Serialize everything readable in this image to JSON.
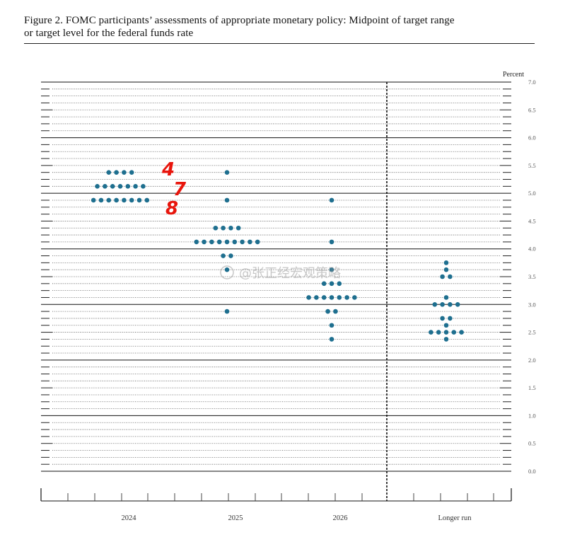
{
  "figure": {
    "title_line1": "Figure 2.  FOMC participants’ assessments of appropriate monetary policy:  Midpoint of target range",
    "title_line2": "or target level for the federal funds rate"
  },
  "watermark": "@张正经宏观策略",
  "annotations": [
    "4",
    "7",
    "8"
  ],
  "colors": {
    "dot": "#1e6f8f",
    "annotation": "#e8150c"
  },
  "chart_data": {
    "type": "scatter",
    "ylabel": "Percent",
    "ylim": [
      0,
      7.0
    ],
    "y_ticks": [
      "0.0",
      "0.5",
      "1.0",
      "1.5",
      "2.0",
      "2.5",
      "3.0",
      "3.5",
      "4.0",
      "4.5",
      "5.0",
      "5.5",
      "6.0",
      "6.5",
      "7.0"
    ],
    "categories": [
      "2024",
      "2025",
      "2026",
      "Longer run"
    ],
    "grid": "dotted lines every 0.125, solid lines at whole numbers",
    "dots": [
      {
        "category": "2024",
        "rows": [
          {
            "y": 5.375,
            "count": 4
          },
          {
            "y": 5.125,
            "count": 7
          },
          {
            "y": 4.875,
            "count": 8
          }
        ]
      },
      {
        "category": "2025",
        "rows": [
          {
            "y": 5.375,
            "count": 1
          },
          {
            "y": 4.875,
            "count": 1
          },
          {
            "y": 4.375,
            "count": 4
          },
          {
            "y": 4.125,
            "count": 9
          },
          {
            "y": 3.875,
            "count": 2
          },
          {
            "y": 3.625,
            "count": 1
          },
          {
            "y": 2.875,
            "count": 1
          }
        ]
      },
      {
        "category": "2026",
        "rows": [
          {
            "y": 4.875,
            "count": 1
          },
          {
            "y": 4.125,
            "count": 1
          },
          {
            "y": 3.625,
            "count": 1
          },
          {
            "y": 3.375,
            "count": 3
          },
          {
            "y": 3.125,
            "count": 7
          },
          {
            "y": 2.875,
            "count": 2
          },
          {
            "y": 2.625,
            "count": 1
          },
          {
            "y": 2.375,
            "count": 1
          }
        ]
      },
      {
        "category": "Longer run",
        "rows": [
          {
            "y": 3.75,
            "count": 1
          },
          {
            "y": 3.625,
            "count": 1
          },
          {
            "y": 3.5,
            "count": 2
          },
          {
            "y": 3.125,
            "count": 1
          },
          {
            "y": 3.0,
            "count": 4
          },
          {
            "y": 2.75,
            "count": 2
          },
          {
            "y": 2.625,
            "count": 1
          },
          {
            "y": 2.5,
            "count": 5
          },
          {
            "y": 2.375,
            "count": 1
          }
        ]
      }
    ]
  }
}
